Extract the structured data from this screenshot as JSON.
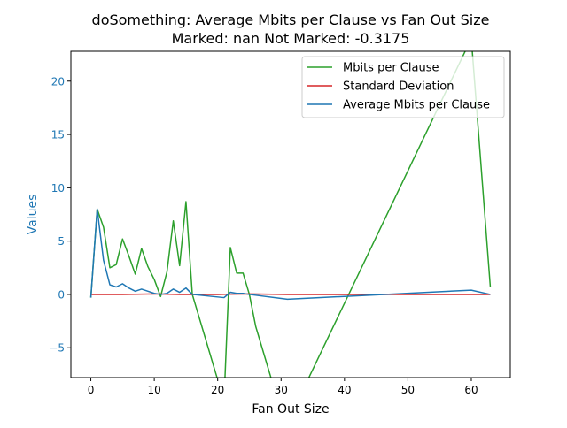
{
  "chart_data": {
    "type": "line",
    "title": "doSomething: Average Mbits per Clause vs Fan Out Size",
    "subtitle": "Marked: nan Not Marked: -0.3175",
    "xlabel": "Fan Out Size",
    "ylabel": "Values",
    "xlim": [
      -3.15,
      66.15
    ],
    "ylim": [
      -7.8,
      22.8
    ],
    "xticks": [
      0,
      10,
      20,
      30,
      40,
      50,
      60
    ],
    "xtick_labels": [
      "0",
      "10",
      "20",
      "30",
      "40",
      "50",
      "60"
    ],
    "yticks": [
      -5,
      0,
      5,
      10,
      15,
      20
    ],
    "ytick_labels": [
      "−5",
      "0",
      "5",
      "10",
      "15",
      "20"
    ],
    "grid": false,
    "legend_position": "top-right",
    "series": [
      {
        "name": "Mbits per Clause",
        "color": "#2ca02c",
        "x": [
          0,
          1,
          2,
          3,
          4,
          5,
          6,
          7,
          8,
          9,
          10,
          11,
          12,
          13,
          14,
          15,
          16,
          21,
          22,
          23,
          24,
          25,
          26,
          27,
          29,
          31,
          60,
          63
        ],
        "y": [
          -0.3,
          8.0,
          6.3,
          2.5,
          2.8,
          5.2,
          3.6,
          1.9,
          4.3,
          2.6,
          1.4,
          -0.2,
          2.1,
          6.9,
          2.7,
          8.7,
          0.0,
          -10.0,
          4.4,
          2.0,
          2.0,
          0.0,
          -3.0,
          -5.0,
          -9.0,
          -12.0,
          24.0,
          0.7
        ]
      },
      {
        "name": "Standard Deviation",
        "color": "#d62728",
        "x": [
          0,
          5,
          10,
          14,
          20,
          25,
          31,
          40,
          50,
          63
        ],
        "y": [
          0.0,
          0.0,
          0.05,
          0.0,
          0.0,
          0.05,
          0.0,
          0.0,
          0.0,
          0.0
        ]
      },
      {
        "name": "Average Mbits per Clause",
        "color": "#1f77b4",
        "x": [
          0,
          1,
          2,
          3,
          4,
          5,
          6,
          7,
          8,
          9,
          10,
          11,
          12,
          13,
          14,
          15,
          16,
          21,
          22,
          23,
          24,
          25,
          31,
          60,
          63
        ],
        "y": [
          -0.3,
          8.0,
          3.2,
          0.9,
          0.7,
          1.0,
          0.6,
          0.3,
          0.5,
          0.3,
          0.1,
          0.0,
          0.1,
          0.5,
          0.2,
          0.6,
          0.0,
          -0.3,
          0.2,
          0.1,
          0.1,
          0.0,
          -0.45,
          0.4,
          0.0
        ]
      }
    ]
  }
}
